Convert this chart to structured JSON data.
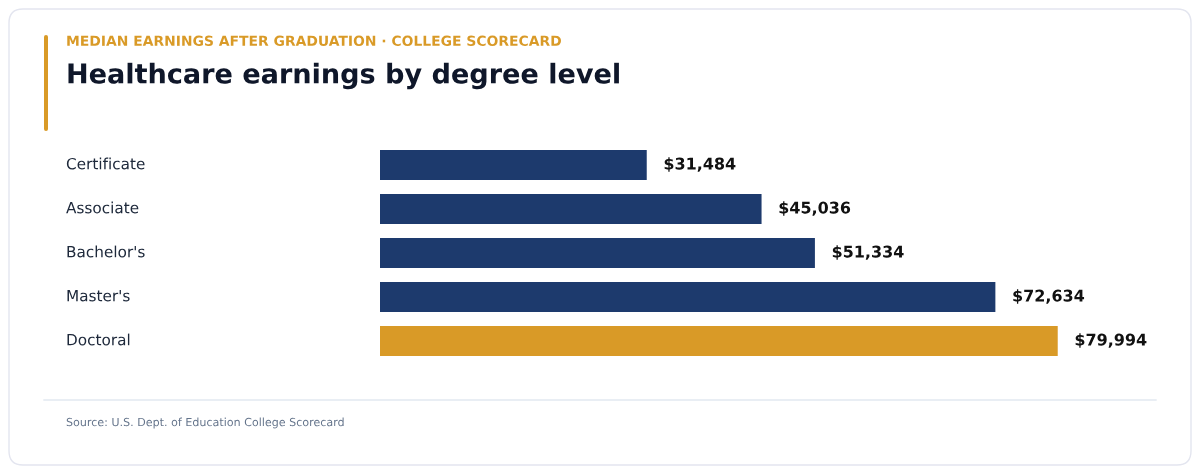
{
  "chart_data": {
    "type": "bar",
    "orientation": "horizontal",
    "title": "Healthcare earnings by degree level",
    "subtitle": "MEDIAN EARNINGS AFTER GRADUATION · COLLEGE SCORECARD",
    "categories": [
      "Certificate",
      "Associate",
      "Bachelor's",
      "Master's",
      "Doctoral"
    ],
    "values": [
      31484,
      45036,
      51334,
      72634,
      79994
    ],
    "colors": [
      "#1d3a6d",
      "#1d3a6d",
      "#1d3a6d",
      "#1d3a6d",
      "#d99a27"
    ],
    "value_labels": [
      "$31,484",
      "$45,036",
      "$51,334",
      "$72,634",
      "$79,994"
    ],
    "tick_labels": "y",
    "annotations": [
      "Source: U.S. Dept. of Education College Scorecard"
    ]
  }
}
